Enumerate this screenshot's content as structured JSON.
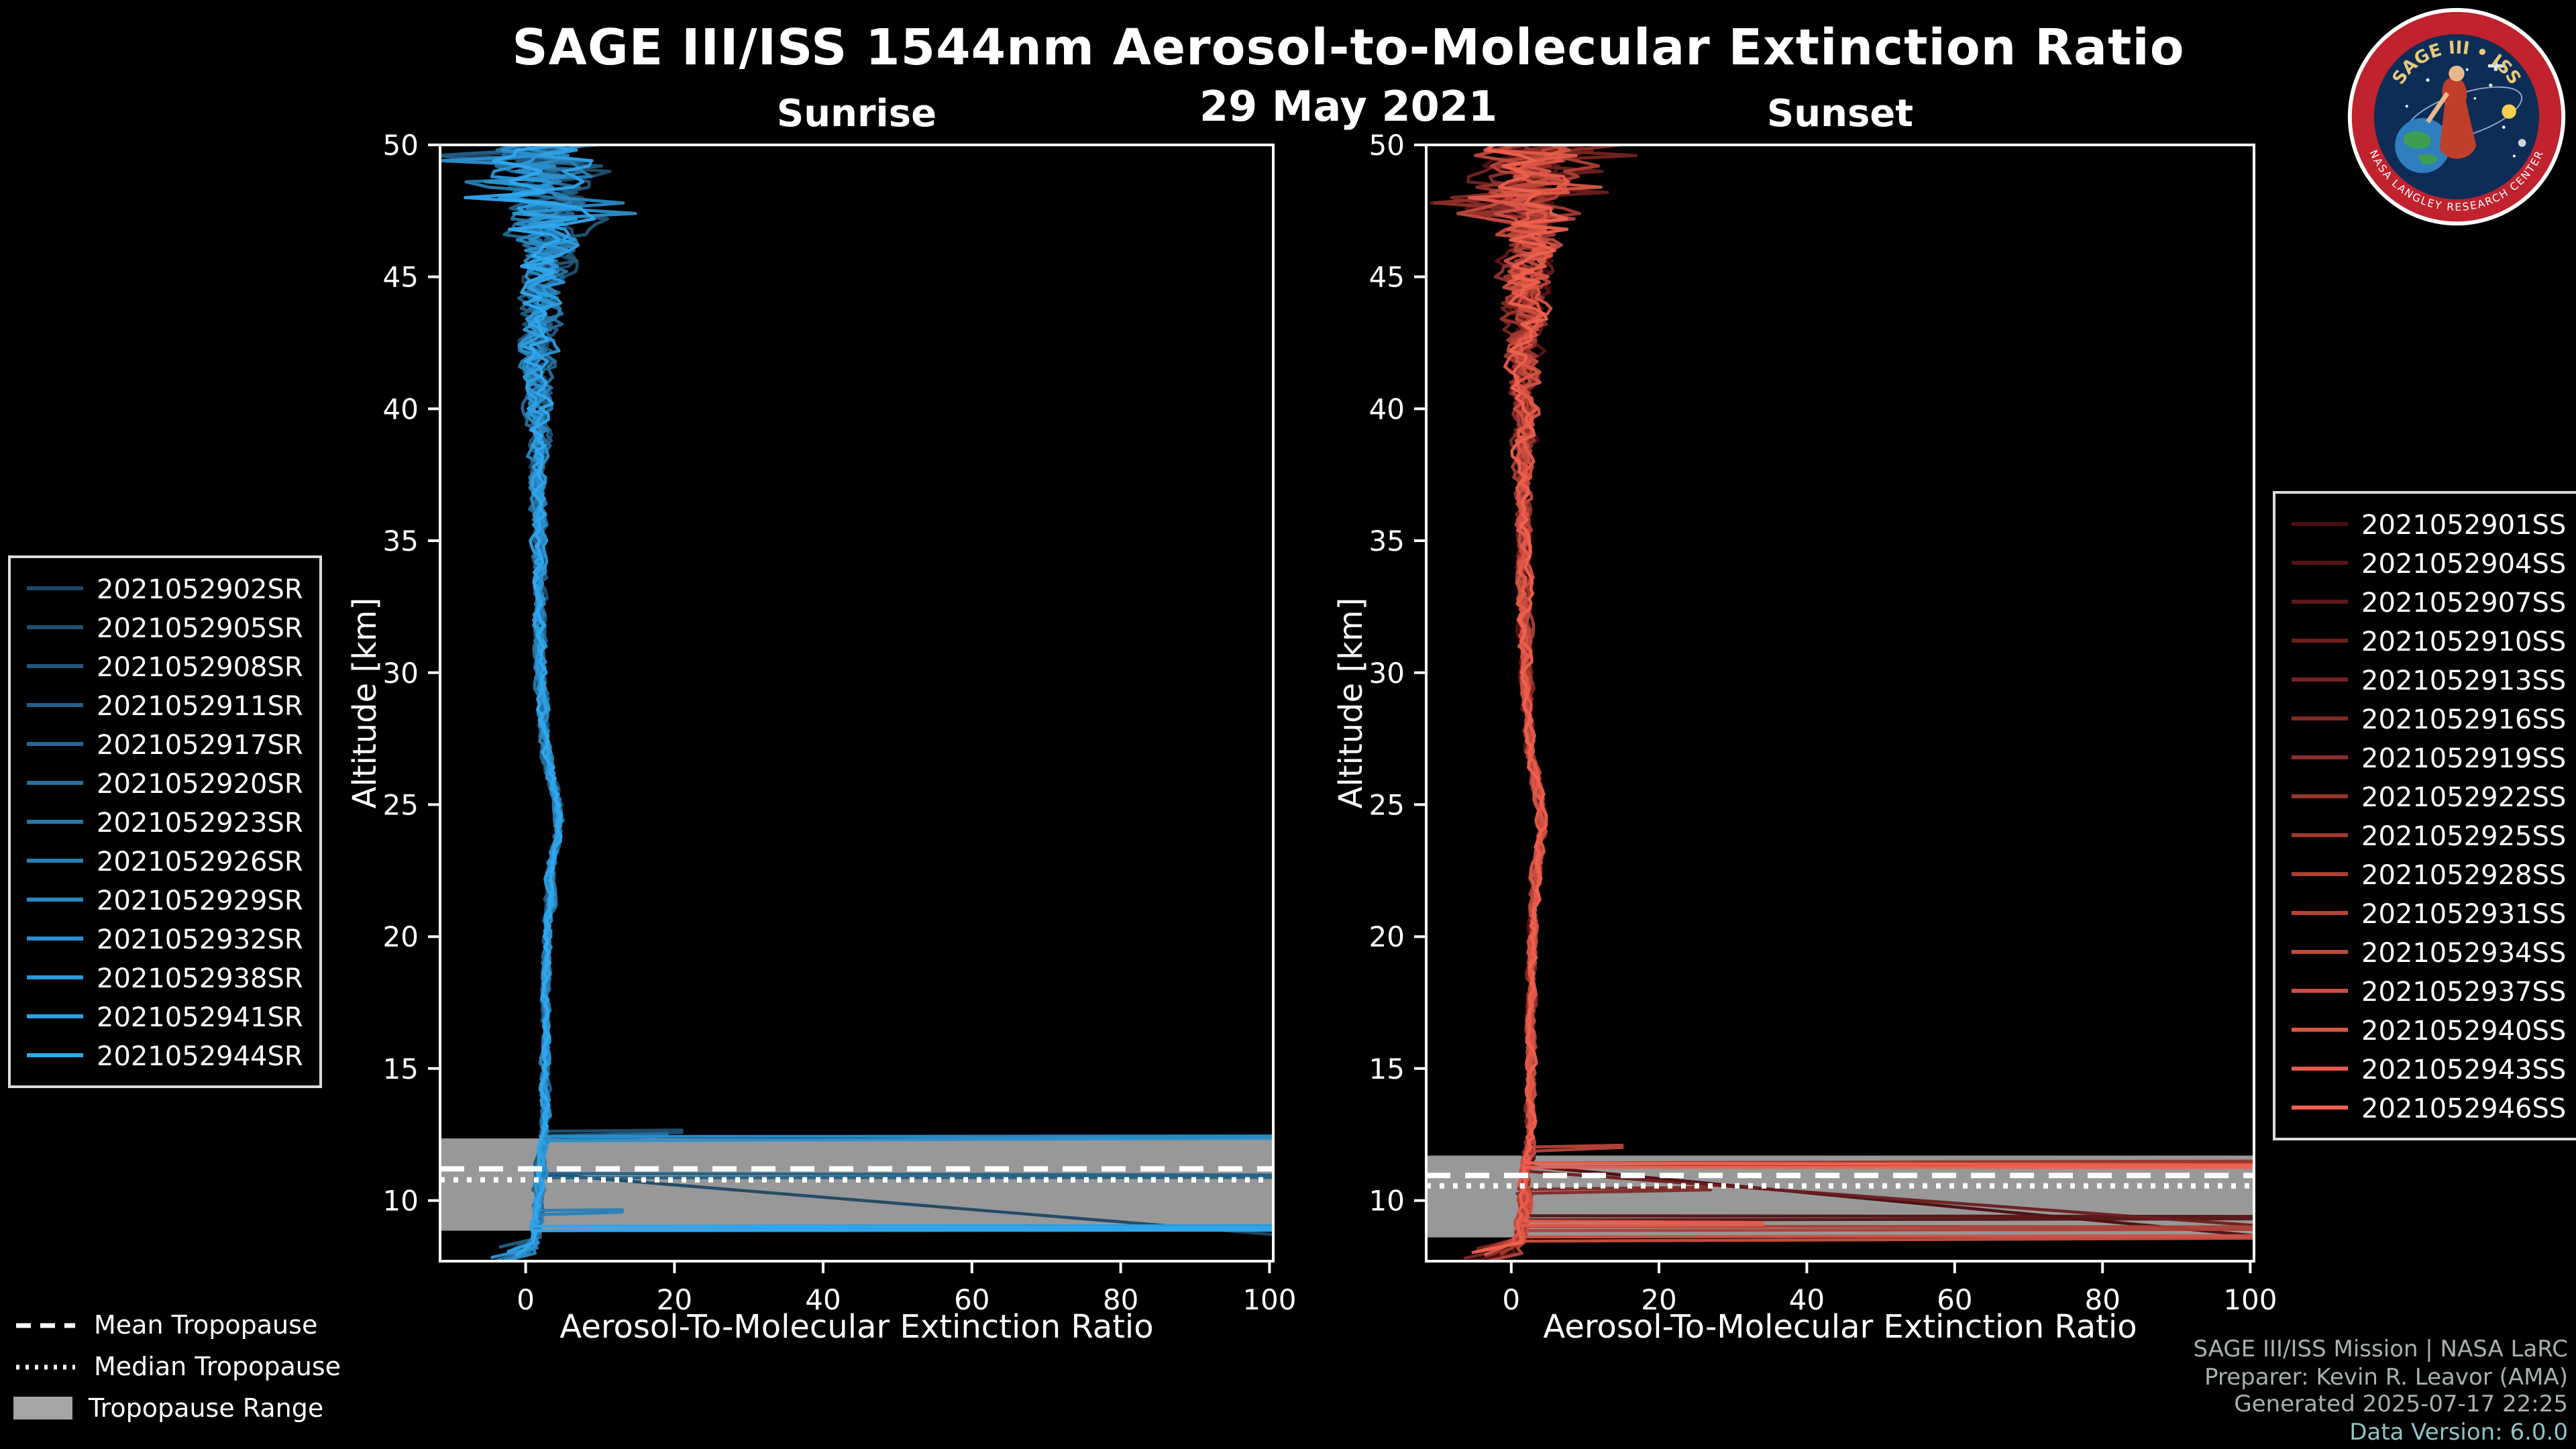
{
  "header": {
    "title": "SAGE III/ISS 1544nm Aerosol-to-Molecular Extinction Ratio",
    "date": "29 May 2021"
  },
  "footer": {
    "line1": "SAGE III/ISS Mission | NASA LaRC",
    "line2": "Preparer: Kevin R. Leavor (AMA)",
    "line3": "Generated 2025-07-17 22:25",
    "line4": "Data Version: 6.0.0"
  },
  "tropopause_legend": {
    "mean": "Mean Tropopause",
    "median": "Median Tropopause",
    "range": "Tropopause Range"
  },
  "logo": {
    "title": "SAGE III • ISS",
    "ring_text": "NASA LANGLEY RESEARCH CENTER"
  },
  "chart_data": [
    {
      "id": "sunrise",
      "type": "line",
      "title": "Sunrise",
      "xlabel": "Aerosol-To-Molecular Extinction Ratio",
      "ylabel": "Altitude [km]",
      "xlim": [
        -11.5,
        100.5
      ],
      "ylim": [
        7.7,
        50
      ],
      "xticks": [
        0,
        20,
        40,
        60,
        80,
        100
      ],
      "yticks": [
        50,
        45,
        40,
        35,
        30,
        25,
        20,
        15,
        10
      ],
      "grid": false,
      "legend_position": "left-outside",
      "color_start": "#1f4864",
      "color_end": "#2fa8f0",
      "tropopause": {
        "mean": 11.2,
        "median": 10.78,
        "range": [
          8.85,
          12.35
        ]
      },
      "base_anchors": [
        [
          50,
          2.8
        ],
        [
          47,
          2.6
        ],
        [
          44,
          2.0
        ],
        [
          40,
          1.7
        ],
        [
          36,
          1.7
        ],
        [
          31,
          1.9
        ],
        [
          27,
          2.6
        ],
        [
          25,
          4.3
        ],
        [
          24,
          4.4
        ],
        [
          22.5,
          3.4
        ],
        [
          20,
          3.0
        ],
        [
          17,
          2.7
        ],
        [
          14,
          2.6
        ],
        [
          12.5,
          2.6
        ],
        [
          11.5,
          2.2
        ],
        [
          10,
          1.8
        ],
        [
          9,
          1.4
        ],
        [
          8,
          0.8
        ]
      ],
      "noise_anchors": [
        [
          50,
          6.5
        ],
        [
          48,
          5.5
        ],
        [
          46,
          3.8
        ],
        [
          43,
          2.4
        ],
        [
          40,
          1.6
        ],
        [
          37,
          1.0
        ],
        [
          33,
          0.8
        ],
        [
          28,
          0.6
        ],
        [
          22,
          0.55
        ],
        [
          16,
          0.5
        ],
        [
          12,
          0.6
        ],
        [
          8,
          0.9
        ]
      ],
      "series": [
        {
          "label": "2021052902SR",
          "tail_diag": {
            "from_alt": 11.0,
            "to_alt": 8.65,
            "to_x": 103
          }
        },
        {
          "label": "2021052905SR",
          "spike": {
            "alt": 12.62,
            "max": 21
          }
        },
        {
          "label": "2021052908SR"
        },
        {
          "label": "2021052911SR",
          "spike": {
            "alt": 10.92,
            "max": 103
          }
        },
        {
          "label": "2021052917SR"
        },
        {
          "label": "2021052920SR",
          "spike": {
            "alt": 12.48,
            "max": 19
          }
        },
        {
          "label": "2021052923SR"
        },
        {
          "label": "2021052926SR",
          "spike": {
            "alt": 9.6,
            "max": 13
          }
        },
        {
          "label": "2021052929SR"
        },
        {
          "label": "2021052932SR",
          "spike": {
            "alt": 12.4,
            "max": 103
          }
        },
        {
          "label": "2021052938SR",
          "spike": {
            "alt": 9.0,
            "max": 103
          }
        },
        {
          "label": "2021052941SR"
        },
        {
          "label": "2021052944SR",
          "spike": {
            "alt": 8.92,
            "max": 103
          }
        }
      ]
    },
    {
      "id": "sunset",
      "type": "line",
      "title": "Sunset",
      "xlabel": "Aerosol-To-Molecular Extinction Ratio",
      "ylabel": "Altitude [km]",
      "xlim": [
        -11.5,
        100.5
      ],
      "ylim": [
        7.7,
        50
      ],
      "xticks": [
        0,
        20,
        40,
        60,
        80,
        100
      ],
      "yticks": [
        50,
        45,
        40,
        35,
        30,
        25,
        20,
        15,
        10
      ],
      "grid": false,
      "legend_position": "right-outside",
      "color_start": "#4a0d10",
      "color_end": "#ef604e",
      "tropopause": {
        "mean": 10.95,
        "median": 10.55,
        "range": [
          8.6,
          11.7
        ]
      },
      "base_anchors": [
        [
          50,
          2.8
        ],
        [
          47,
          2.6
        ],
        [
          44,
          2.0
        ],
        [
          40,
          1.7
        ],
        [
          36,
          1.7
        ],
        [
          31,
          1.9
        ],
        [
          27,
          2.6
        ],
        [
          25,
          4.0
        ],
        [
          24,
          4.2
        ],
        [
          22.5,
          3.4
        ],
        [
          20,
          3.0
        ],
        [
          17,
          2.7
        ],
        [
          14,
          2.6
        ],
        [
          12.5,
          2.6
        ],
        [
          11.5,
          2.2
        ],
        [
          10,
          1.8
        ],
        [
          9,
          1.4
        ],
        [
          8,
          0.8
        ]
      ],
      "noise_anchors": [
        [
          50,
          6.5
        ],
        [
          48,
          5.5
        ],
        [
          46,
          3.8
        ],
        [
          43,
          2.4
        ],
        [
          40,
          1.6
        ],
        [
          37,
          1.0
        ],
        [
          33,
          0.8
        ],
        [
          28,
          0.6
        ],
        [
          22,
          0.55
        ],
        [
          16,
          0.5
        ],
        [
          12,
          0.6
        ],
        [
          8,
          0.9
        ]
      ],
      "series": [
        {
          "label": "2021052901SS",
          "tail_diag": {
            "from_alt": 11.3,
            "to_alt": 8.6,
            "to_x": 103
          }
        },
        {
          "label": "2021052904SS",
          "spike": {
            "alt": 9.35,
            "max": 103
          }
        },
        {
          "label": "2021052907SS"
        },
        {
          "label": "2021052910SS",
          "tail_diag": {
            "from_alt": 11.1,
            "to_alt": 9.0,
            "to_x": 103
          }
        },
        {
          "label": "2021052913SS"
        },
        {
          "label": "2021052916SS",
          "spike": {
            "alt": 10.45,
            "max": 27
          }
        },
        {
          "label": "2021052919SS"
        },
        {
          "label": "2021052922SS",
          "spike": {
            "alt": 11.45,
            "max": 103
          }
        },
        {
          "label": "2021052925SS"
        },
        {
          "label": "2021052928SS",
          "spike": {
            "alt": 8.95,
            "max": 103
          }
        },
        {
          "label": "2021052931SS",
          "spike": {
            "alt": 12.05,
            "max": 15
          }
        },
        {
          "label": "2021052934SS"
        },
        {
          "label": "2021052937SS",
          "spike": {
            "alt": 8.62,
            "max": 103
          }
        },
        {
          "label": "2021052940SS"
        },
        {
          "label": "2021052943SS",
          "spike": {
            "alt": 9.12,
            "max": 34
          }
        },
        {
          "label": "2021052946SS",
          "spike": {
            "alt": 11.3,
            "max": 103
          }
        }
      ]
    }
  ]
}
